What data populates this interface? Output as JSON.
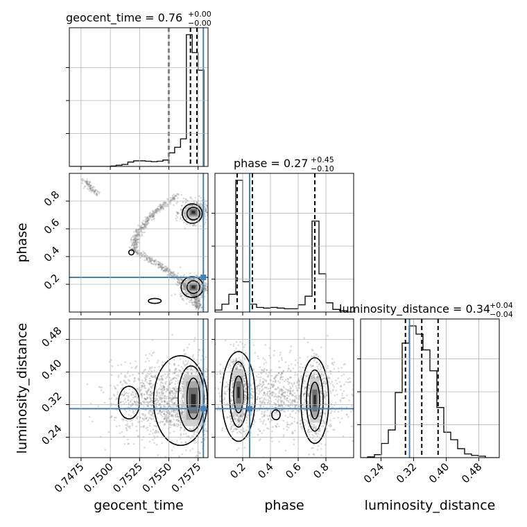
{
  "chart_data": {
    "type": "corner",
    "parameters": [
      "geocent_time",
      "phase",
      "luminosity_distance"
    ],
    "axis_labels": [
      "geocent_time",
      "phase",
      "luminosity_distance"
    ],
    "ranges": {
      "geocent_time": [
        0.7465,
        0.75835
      ],
      "phase": [
        0.0,
        1.0
      ],
      "luminosity_distance": [
        0.19,
        0.53
      ]
    },
    "x_ticks": {
      "geocent_time": [
        "0.7475",
        "0.7500",
        "0.7525",
        "0.7550",
        "0.7575"
      ],
      "phase": [
        "0.2",
        "0.4",
        "0.6",
        "0.8"
      ],
      "luminosity_distance": [
        "0.24",
        "0.32",
        "0.40",
        "0.48"
      ]
    },
    "y_ticks": {
      "phase": [
        "0.2",
        "0.4",
        "0.6",
        "0.8"
      ],
      "luminosity_distance": [
        "0.24",
        "0.32",
        "0.40",
        "0.48"
      ]
    },
    "truths": {
      "geocent_time": 0.75795,
      "phase": 0.25,
      "luminosity_distance": 0.31
    },
    "titles": [
      {
        "param": "geocent_time",
        "label": "geocent_time = 0.76",
        "upper": "+0.00",
        "lower": "−0.00"
      },
      {
        "param": "phase",
        "label": "phase = 0.27",
        "upper": "+0.45",
        "lower": "−0.10"
      },
      {
        "param": "luminosity_distance",
        "label": "luminosity_distance = 0.34",
        "upper": "+0.04",
        "lower": "−0.04"
      }
    ],
    "quantiles": {
      "geocent_time": [
        0.755,
        0.75685,
        0.7574
      ],
      "phase": [
        0.16,
        0.27,
        0.72
      ],
      "luminosity_distance": [
        0.3,
        0.34,
        0.38
      ]
    },
    "histograms": {
      "geocent_time": {
        "edges": [
          0.7465,
          0.747,
          0.7475,
          0.748,
          0.7485,
          0.749,
          0.7495,
          0.75,
          0.7505,
          0.751,
          0.7515,
          0.752,
          0.7525,
          0.753,
          0.7535,
          0.754,
          0.7545,
          0.755,
          0.7555,
          0.756,
          0.7565,
          0.757,
          0.7575,
          0.758
        ],
        "counts": [
          0,
          0,
          0,
          0,
          0,
          0,
          0,
          1,
          3,
          5,
          11,
          14,
          14,
          13,
          12,
          13,
          16,
          34,
          48,
          69,
          330,
          285,
          241
        ]
      },
      "phase": {
        "edges": [
          0.0,
          0.05,
          0.1,
          0.15,
          0.2,
          0.25,
          0.3,
          0.35,
          0.4,
          0.45,
          0.5,
          0.55,
          0.6,
          0.65,
          0.7,
          0.75,
          0.8,
          0.85,
          0.9,
          0.95,
          1.0
        ],
        "counts": [
          3,
          12,
          27,
          200,
          46,
          12,
          7,
          6,
          7,
          6,
          5,
          5,
          11,
          24,
          138,
          58,
          14,
          4,
          2,
          0
        ]
      },
      "luminosity_distance": {
        "edges": [
          0.19,
          0.207,
          0.224,
          0.241,
          0.258,
          0.275,
          0.292,
          0.309,
          0.326,
          0.343,
          0.36,
          0.377,
          0.394,
          0.411,
          0.428,
          0.445,
          0.462,
          0.479,
          0.496,
          0.513,
          0.53
        ],
        "counts": [
          0,
          1,
          4,
          19,
          37,
          87,
          153,
          176,
          165,
          144,
          116,
          67,
          34,
          24,
          12,
          5,
          3,
          2,
          0,
          0
        ]
      }
    },
    "pairs": [
      {
        "x": "geocent_time",
        "y": "phase",
        "modes": [
          {
            "x": 0.7571,
            "y": 0.72,
            "sx": 0.00035,
            "sy": 0.025
          },
          {
            "x": 0.7571,
            "y": 0.18,
            "sx": 0.00035,
            "sy": 0.025
          }
        ],
        "arc": {
          "x0": 0.7473,
          "x1": 0.7575,
          "y0": 0.95,
          "ypinch": 0.45,
          "xpinch": 0.752,
          "y1": 0.02
        },
        "contours": [
          {
            "level": 1,
            "cx": 0.7571,
            "cy": 0.71,
            "rx": 0.00055,
            "ry": 0.045
          },
          {
            "level": 2,
            "cx": 0.757,
            "cy": 0.71,
            "rx": 0.00085,
            "ry": 0.07
          },
          {
            "level": 1,
            "cx": 0.7571,
            "cy": 0.18,
            "rx": 0.00055,
            "ry": 0.045
          },
          {
            "level": 2,
            "cx": 0.757,
            "cy": 0.18,
            "rx": 0.00095,
            "ry": 0.075
          },
          {
            "level": 3,
            "cx": 0.7538,
            "cy": 0.08,
            "rx": 0.00055,
            "ry": 0.018
          },
          {
            "level": 3,
            "cx": 0.7518,
            "cy": 0.43,
            "rx": 0.00022,
            "ry": 0.018
          }
        ]
      },
      {
        "x": "geocent_time",
        "y": "luminosity_distance",
        "modes": [
          {
            "x": 0.7571,
            "y": 0.33,
            "sx": 0.00045,
            "sy": 0.035
          }
        ],
        "spread": {
          "x": 0.7545,
          "y": 0.33,
          "sx": 0.0022,
          "sy": 0.045
        },
        "contours": [
          {
            "level": 1,
            "cx": 0.7571,
            "cy": 0.335,
            "rx": 0.00055,
            "ry": 0.05
          },
          {
            "level": 2,
            "cx": 0.7569,
            "cy": 0.335,
            "rx": 0.0011,
            "ry": 0.08
          },
          {
            "level": 3,
            "cx": 0.756,
            "cy": 0.33,
            "rx": 0.0023,
            "ry": 0.11
          },
          {
            "level": 3,
            "cx": 0.7516,
            "cy": 0.325,
            "rx": 0.0009,
            "ry": 0.04
          }
        ]
      },
      {
        "x": "phase",
        "y": "luminosity_distance",
        "modes": [
          {
            "x": 0.17,
            "y": 0.35,
            "sx": 0.02,
            "sy": 0.03
          },
          {
            "x": 0.72,
            "y": 0.33,
            "sx": 0.02,
            "sy": 0.03
          }
        ],
        "spread": {
          "x": 0.45,
          "y": 0.34,
          "sx": 0.3,
          "sy": 0.045
        },
        "contours": [
          {
            "level": 1,
            "cx": 0.17,
            "cy": 0.345,
            "rx": 0.035,
            "ry": 0.045
          },
          {
            "level": 2,
            "cx": 0.17,
            "cy": 0.345,
            "rx": 0.065,
            "ry": 0.08
          },
          {
            "level": 3,
            "cx": 0.17,
            "cy": 0.34,
            "rx": 0.12,
            "ry": 0.11
          },
          {
            "level": 1,
            "cx": 0.72,
            "cy": 0.33,
            "rx": 0.035,
            "ry": 0.045
          },
          {
            "level": 2,
            "cx": 0.72,
            "cy": 0.33,
            "rx": 0.06,
            "ry": 0.075
          },
          {
            "level": 3,
            "cx": 0.72,
            "cy": 0.33,
            "rx": 0.1,
            "ry": 0.105
          },
          {
            "level": 3,
            "cx": 0.44,
            "cy": 0.295,
            "rx": 0.03,
            "ry": 0.012
          }
        ]
      }
    ],
    "grid": true,
    "colors": {
      "truth": "#4682b4",
      "hist": "#000000",
      "scatter": "#7f7f7f",
      "contour": "#000000",
      "grid": "#b0b0b0"
    }
  }
}
